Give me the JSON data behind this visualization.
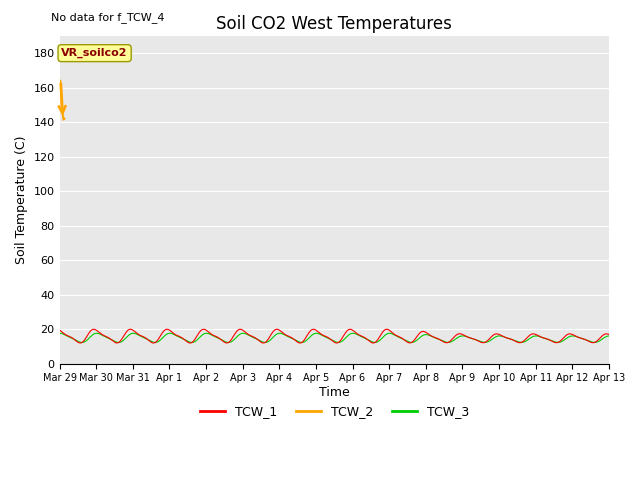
{
  "title": "Soil CO2 West Temperatures",
  "no_data_text": "No data for f_TCW_4",
  "ylabel": "Soil Temperature (C)",
  "xlabel": "Time",
  "ylim": [
    0,
    190
  ],
  "yticks": [
    0,
    20,
    40,
    60,
    80,
    100,
    120,
    140,
    160,
    180
  ],
  "bg_color": "#e8e8e8",
  "fig_color": "#ffffff",
  "legend_labels": [
    "TCW_1",
    "TCW_2",
    "TCW_3"
  ],
  "legend_colors": [
    "#ff0000",
    "#ffa500",
    "#00cc00"
  ],
  "annotation_label": "VR_soilco2",
  "annotation_bg": "#ffff99",
  "annotation_border": "#999900",
  "arrow_color": "#ffa500",
  "tick_labels": [
    "Mar 29",
    "Mar 30",
    "Mar 31",
    "Apr 1",
    "Apr 2",
    "Apr 3",
    "Apr 4",
    "Apr 5",
    "Apr 6",
    "Apr 7",
    "Apr 8",
    "Apr 9",
    "Apr 10",
    "Apr 11",
    "Apr 12",
    "Apr 13"
  ]
}
